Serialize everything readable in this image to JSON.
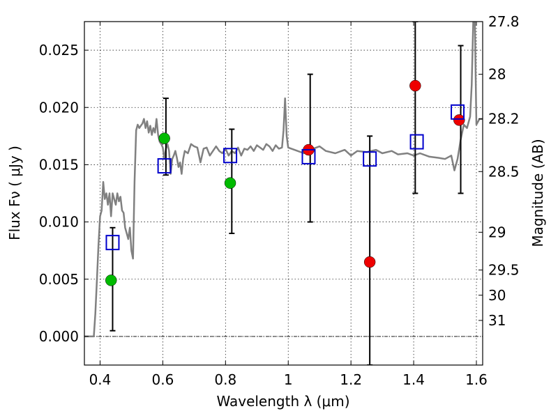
{
  "chart_data": {
    "type": "scatter",
    "xlabel": "Wavelength  λ (μm)",
    "ylabel": "Flux  Fν  ( μJy )",
    "ylabel_right": "Magnitude (AB)",
    "xlim": [
      0.35,
      1.62
    ],
    "ylim": [
      -0.0025,
      0.0275
    ],
    "grid": true,
    "x_ticks": [
      0.4,
      0.6,
      0.8,
      1.0,
      1.2,
      1.4,
      1.6
    ],
    "x_tick_labels": [
      "0.4",
      "0.6",
      "0.8",
      "1",
      "1.2",
      "1.4",
      "1.6"
    ],
    "y_ticks": [
      0.0,
      0.005,
      0.01,
      0.015,
      0.02,
      0.025
    ],
    "y_tick_labels": [
      "0.000",
      "0.005",
      "0.010",
      "0.015",
      "0.020",
      "0.025"
    ],
    "right_ticks": [
      {
        "label": "27.8",
        "flux": 0.0275
      },
      {
        "label": "28",
        "flux": 0.0229
      },
      {
        "label": "28.2",
        "flux": 0.019
      },
      {
        "label": "28.5",
        "flux": 0.0144
      },
      {
        "label": "29",
        "flux": 0.0091
      },
      {
        "label": "29.5",
        "flux": 0.0058
      },
      {
        "label": "30",
        "flux": 0.0036
      },
      {
        "label": "31",
        "flux": 0.0014
      }
    ],
    "colors": {
      "model": "#808080",
      "green": "#00bb00",
      "red": "#ee0000",
      "square": "#0000cc",
      "errorbar": "#000000"
    },
    "model_spectrum": {
      "x": [
        0.35,
        0.38,
        0.385,
        0.39,
        0.395,
        0.4,
        0.405,
        0.41,
        0.415,
        0.42,
        0.425,
        0.43,
        0.435,
        0.44,
        0.445,
        0.45,
        0.455,
        0.46,
        0.465,
        0.47,
        0.475,
        0.48,
        0.485,
        0.49,
        0.495,
        0.5,
        0.505,
        0.51,
        0.515,
        0.52,
        0.525,
        0.53,
        0.535,
        0.54,
        0.545,
        0.55,
        0.555,
        0.56,
        0.565,
        0.57,
        0.575,
        0.58,
        0.585,
        0.59,
        0.595,
        0.6,
        0.605,
        0.61,
        0.615,
        0.62,
        0.625,
        0.63,
        0.635,
        0.64,
        0.645,
        0.65,
        0.655,
        0.66,
        0.665,
        0.67,
        0.68,
        0.69,
        0.7,
        0.71,
        0.72,
        0.73,
        0.74,
        0.75,
        0.76,
        0.77,
        0.78,
        0.79,
        0.8,
        0.81,
        0.82,
        0.83,
        0.84,
        0.85,
        0.86,
        0.87,
        0.88,
        0.89,
        0.9,
        0.91,
        0.92,
        0.93,
        0.94,
        0.95,
        0.96,
        0.97,
        0.98,
        0.985,
        0.99,
        0.995,
        1.0,
        1.02,
        1.05,
        1.08,
        1.1,
        1.12,
        1.15,
        1.18,
        1.2,
        1.22,
        1.25,
        1.28,
        1.3,
        1.33,
        1.35,
        1.38,
        1.4,
        1.42,
        1.45,
        1.48,
        1.5,
        1.52,
        1.53,
        1.54,
        1.55,
        1.56,
        1.57,
        1.58,
        1.585,
        1.59,
        1.595,
        1.6,
        1.61,
        1.62
      ],
      "y": [
        0.0,
        0.0,
        0.002,
        0.005,
        0.008,
        0.0105,
        0.011,
        0.0135,
        0.012,
        0.0125,
        0.0115,
        0.0125,
        0.0105,
        0.0125,
        0.012,
        0.0115,
        0.0125,
        0.0118,
        0.0122,
        0.011,
        0.0108,
        0.0095,
        0.009,
        0.0085,
        0.0095,
        0.0075,
        0.0068,
        0.0135,
        0.018,
        0.0185,
        0.0182,
        0.0184,
        0.0186,
        0.019,
        0.0182,
        0.0188,
        0.0178,
        0.0184,
        0.0176,
        0.0182,
        0.0178,
        0.019,
        0.0176,
        0.017,
        0.0168,
        0.0165,
        0.0155,
        0.0164,
        0.0168,
        0.0162,
        0.0142,
        0.0155,
        0.0158,
        0.0162,
        0.0156,
        0.0148,
        0.0152,
        0.0142,
        0.0155,
        0.0162,
        0.016,
        0.0168,
        0.0166,
        0.0165,
        0.0152,
        0.0164,
        0.0165,
        0.0158,
        0.0162,
        0.0166,
        0.0162,
        0.016,
        0.0164,
        0.0158,
        0.0162,
        0.016,
        0.0165,
        0.0158,
        0.0164,
        0.0163,
        0.0166,
        0.0162,
        0.0167,
        0.0165,
        0.0163,
        0.0168,
        0.0166,
        0.0162,
        0.0167,
        0.0164,
        0.0165,
        0.018,
        0.0208,
        0.0175,
        0.0165,
        0.0163,
        0.016,
        0.0164,
        0.0166,
        0.0162,
        0.016,
        0.0163,
        0.0158,
        0.0162,
        0.0161,
        0.0163,
        0.016,
        0.0162,
        0.0159,
        0.016,
        0.0158,
        0.016,
        0.0157,
        0.0156,
        0.0155,
        0.0158,
        0.0145,
        0.0155,
        0.0172,
        0.0185,
        0.0182,
        0.0192,
        0.022,
        0.0275,
        0.0275,
        0.0185,
        0.019,
        0.019
      ]
    },
    "green_points": [
      {
        "x": 0.435,
        "y": 0.0049
      },
      {
        "x": 0.605,
        "y": 0.0173
      },
      {
        "x": 0.815,
        "y": 0.0134
      }
    ],
    "red_points": [
      {
        "x": 1.065,
        "y": 0.0163
      },
      {
        "x": 1.26,
        "y": 0.0065
      },
      {
        "x": 1.405,
        "y": 0.0219
      },
      {
        "x": 1.545,
        "y": 0.0189
      }
    ],
    "square_points": [
      {
        "x": 0.44,
        "y": 0.0082
      },
      {
        "x": 0.605,
        "y": 0.0149
      },
      {
        "x": 0.815,
        "y": 0.0158
      },
      {
        "x": 1.065,
        "y": 0.0157
      },
      {
        "x": 1.26,
        "y": 0.0155
      },
      {
        "x": 1.41,
        "y": 0.017
      },
      {
        "x": 1.54,
        "y": 0.0196
      }
    ],
    "error_bars": [
      {
        "x": 0.44,
        "low": 0.0005,
        "high": 0.0095
      },
      {
        "x": 0.61,
        "low": 0.0141,
        "high": 0.0208
      },
      {
        "x": 0.82,
        "low": 0.009,
        "high": 0.0181
      },
      {
        "x": 1.07,
        "low": 0.01,
        "high": 0.0229
      },
      {
        "x": 1.26,
        "low": -0.0025,
        "high": 0.0175
      },
      {
        "x": 1.405,
        "low": 0.0125,
        "high": 0.0275
      },
      {
        "x": 1.55,
        "low": 0.0125,
        "high": 0.0254
      }
    ]
  }
}
